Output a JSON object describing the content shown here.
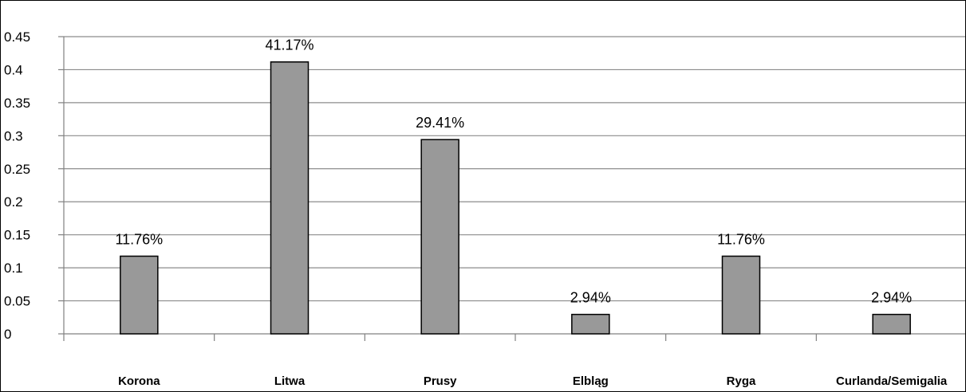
{
  "chart_data": {
    "type": "bar",
    "title": "",
    "xlabel": "",
    "ylabel": "",
    "categories": [
      "Korona",
      "Litwa",
      "Prusy",
      "Elbląg",
      "Ryga",
      "Curlanda/Semigalia"
    ],
    "values": [
      0.1176,
      0.4117,
      0.2941,
      0.0294,
      0.1176,
      0.0294
    ],
    "data_labels": [
      "11.76%",
      "41.17%",
      "29.41%",
      "2.94%",
      "11.76%",
      "2.94%"
    ],
    "ylim": [
      0,
      0.45
    ],
    "yticks": [
      0,
      0.05,
      0.1,
      0.15,
      0.2,
      0.25,
      0.3,
      0.35,
      0.4,
      0.45
    ],
    "ytick_labels": [
      "0",
      "0.05",
      "0.1",
      "0.15",
      "0.2",
      "0.25",
      "0.3",
      "0.35",
      "0.4",
      "0.45"
    ],
    "grid": true,
    "legend": "none",
    "colors": {
      "bar_fill": "#999999",
      "bar_stroke": "#000000",
      "grid": "#8c8c8c",
      "axis": "#808080",
      "frame": "#000000"
    }
  }
}
